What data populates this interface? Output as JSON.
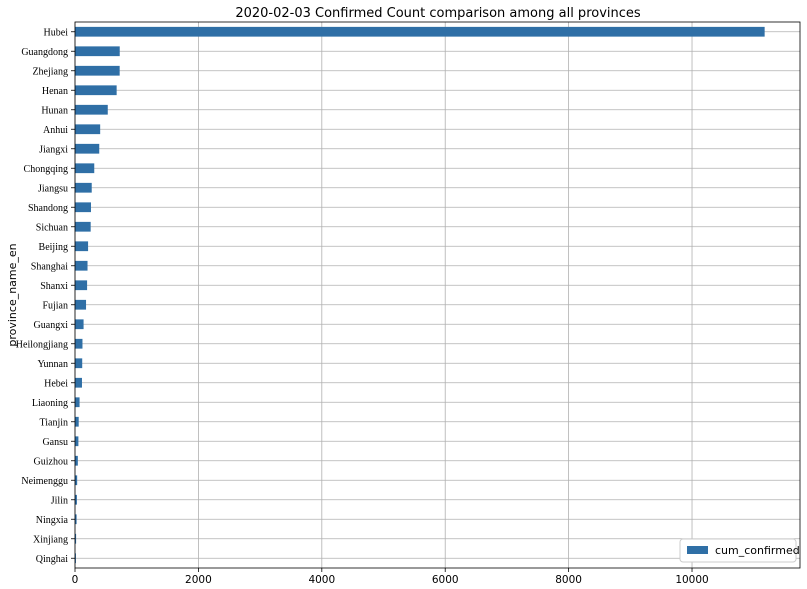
{
  "chart_data": {
    "type": "bar",
    "orientation": "horizontal",
    "title": "2020-02-03 Confirmed Count comparison among all provinces",
    "xlabel": "",
    "ylabel": "province_name_en",
    "xlim": [
      0,
      11750
    ],
    "xticks": [
      "0",
      "2000",
      "4000",
      "6000",
      "8000",
      "10000"
    ],
    "grid": true,
    "legend_position": "lower-right",
    "color": "#2f6fa6",
    "categories": [
      "Hubei",
      "Guangdong",
      "Zhejiang",
      "Henan",
      "Hunan",
      "Anhui",
      "Jiangxi",
      "Chongqing",
      "Jiangsu",
      "Shandong",
      "Sichuan",
      "Beijing",
      "Shanghai",
      "Shanxi",
      "Fujian",
      "Guangxi",
      "Heilongjiang",
      "Yunnan",
      "Hebei",
      "Liaoning",
      "Tianjin",
      "Gansu",
      "Guizhou",
      "Neimenggu",
      "Jilin",
      "Ningxia",
      "Xinjiang",
      "Qinghai"
    ],
    "series": [
      {
        "name": "cum_confirmed",
        "values": [
          11177,
          725,
          724,
          675,
          531,
          408,
          393,
          312,
          271,
          259,
          254,
          212,
          203,
          196,
          179,
          139,
          121,
          117,
          113,
          74,
          60,
          55,
          46,
          35,
          31,
          26,
          18,
          15
        ]
      }
    ]
  }
}
